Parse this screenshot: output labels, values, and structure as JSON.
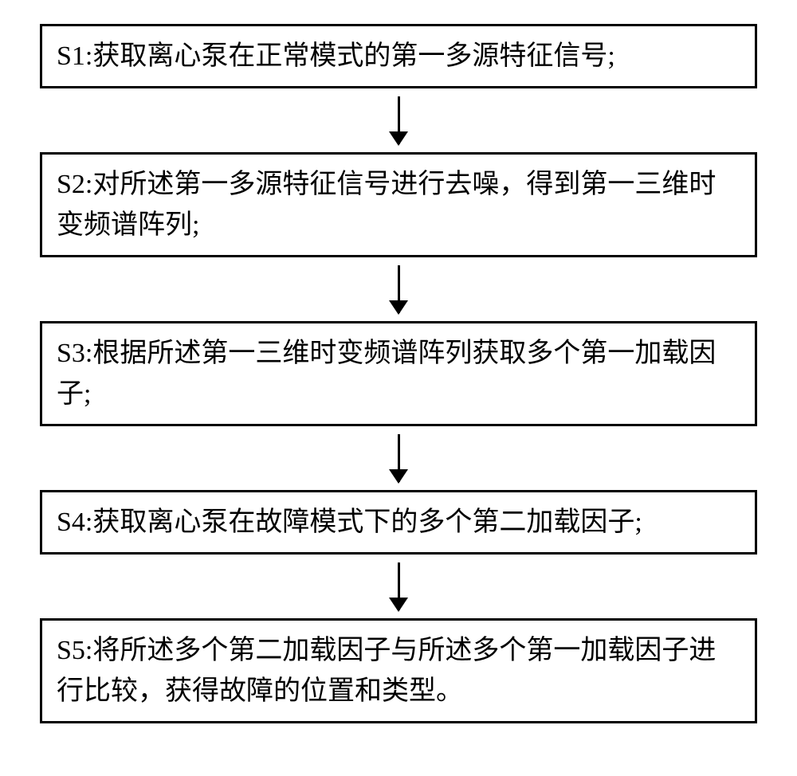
{
  "flowchart": {
    "type": "flowchart",
    "direction": "vertical",
    "background_color": "#ffffff",
    "box_border_color": "#000000",
    "box_border_width": 3,
    "text_color": "#000000",
    "font_size": 34,
    "font_family": "KaiTi",
    "arrow_color": "#000000",
    "arrow_line_width": 3,
    "arrow_head_width": 24,
    "arrow_head_height": 18,
    "steps": [
      {
        "id": "s1",
        "text": "S1:获取离心泵在正常模式的第一多源特征信号;"
      },
      {
        "id": "s2",
        "text": "S2:对所述第一多源特征信号进行去噪，得到第一三维时变频谱阵列;"
      },
      {
        "id": "s3",
        "text": "S3:根据所述第一三维时变频谱阵列获取多个第一加载因子;"
      },
      {
        "id": "s4",
        "text": "S4:获取离心泵在故障模式下的多个第二加载因子;"
      },
      {
        "id": "s5",
        "text": "S5:将所述多个第二加载因子与所述多个第一加载因子进行比较，获得故障的位置和类型。"
      }
    ]
  }
}
